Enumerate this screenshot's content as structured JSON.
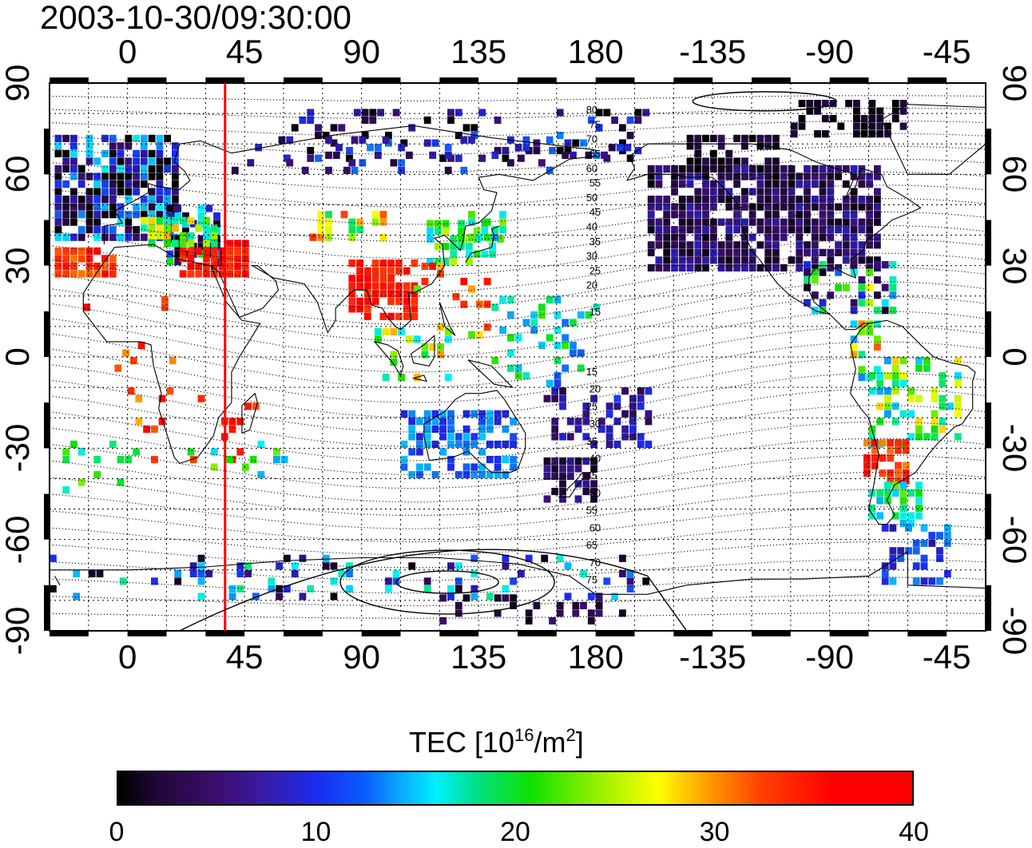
{
  "timestamp": "2003-10-30/09:30:00",
  "map": {
    "lon_min": -30,
    "lon_max": 330,
    "lat_min": -90,
    "lat_max": 90,
    "grid": true,
    "meridian_marker": {
      "lon": 37.5,
      "color": "#ff0000"
    },
    "top_tick_labels": [
      "0",
      "45",
      "90",
      "135",
      "180",
      "-135",
      "-90",
      "-45"
    ],
    "bottom_tick_labels": [
      "0",
      "45",
      "90",
      "135",
      "180",
      "-135",
      "-90",
      "-45"
    ],
    "left_tick_labels": [
      "90",
      "60",
      "30",
      "0",
      "-30",
      "-60",
      "-90"
    ],
    "right_tick_labels": [
      "90",
      "60",
      "30",
      "0",
      "-30",
      "-60",
      "-90"
    ],
    "tick_lons": [
      0,
      45,
      90,
      135,
      180,
      225,
      270,
      315
    ],
    "tick_lats": [
      90,
      60,
      30,
      0,
      -30,
      -60,
      -90
    ],
    "contour_labels_north": [
      "80",
      "75",
      "70",
      "65",
      "60",
      "55",
      "50",
      "45",
      "40",
      "35",
      "30",
      "25",
      "20",
      "15"
    ],
    "contour_labels_south": [
      "15",
      "20",
      "25",
      "30",
      "35",
      "40",
      "45",
      "50",
      "55",
      "60",
      "65",
      "70",
      "75"
    ]
  },
  "colorbar": {
    "title_prefix": "TEC  [10",
    "title_exp1": "16",
    "title_mid": "/m",
    "title_exp2": "2",
    "title_suffix": "]",
    "min": 0,
    "max": 40,
    "tick_labels": [
      "0",
      "10",
      "20",
      "30",
      "40"
    ],
    "colors": [
      "#000000",
      "#3a0d6a",
      "#1a2cf0",
      "#00f0ff",
      "#10e000",
      "#ffff00",
      "#ff4000",
      "#ff0000"
    ]
  }
}
